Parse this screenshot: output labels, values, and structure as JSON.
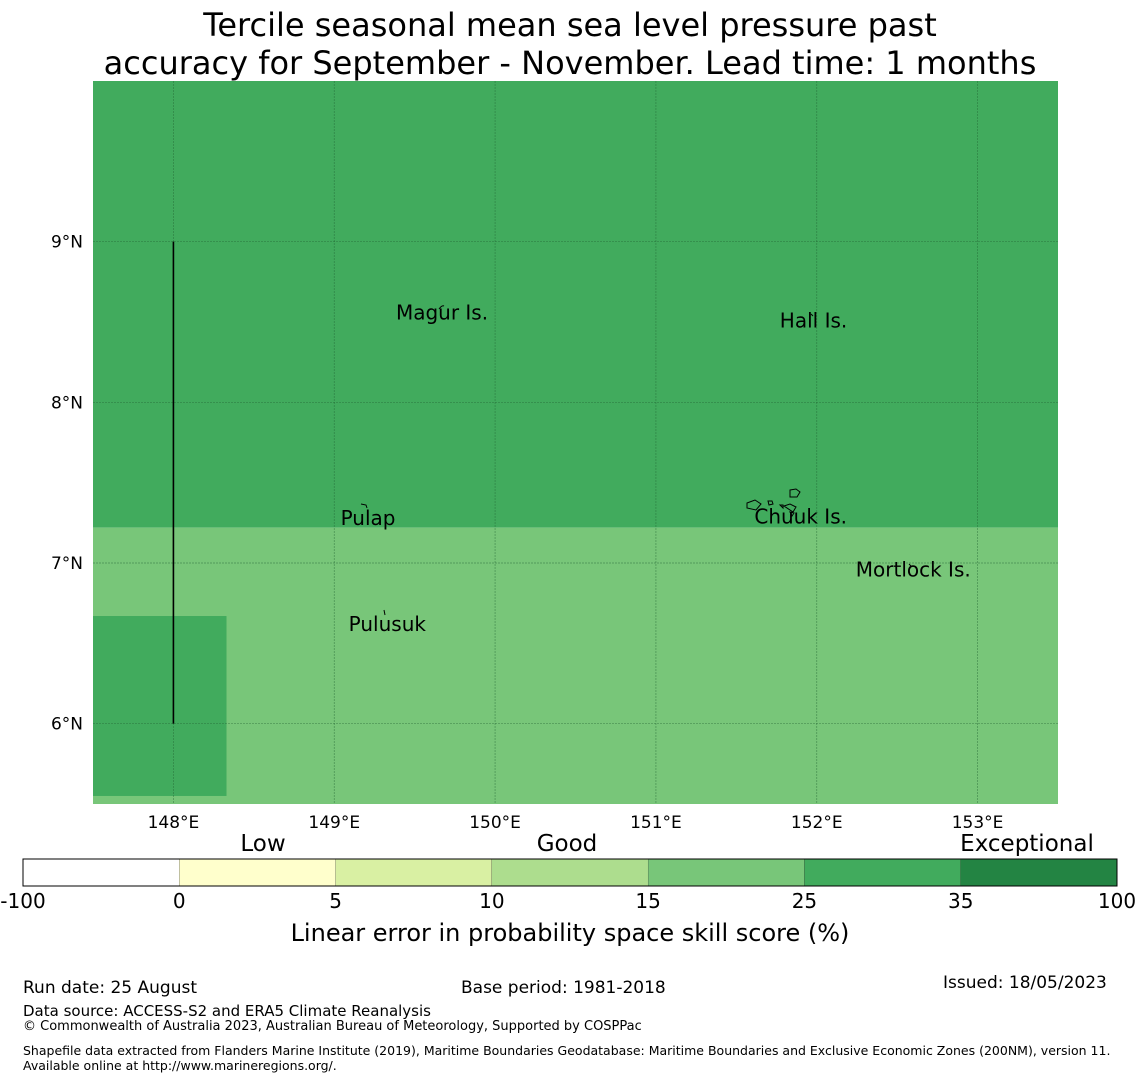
{
  "title_line1": "Tercile seasonal mean sea level pressure past",
  "title_line2": "accuracy for September - November. Lead time: 1 months",
  "map": {
    "lon_range": [
      147.5,
      153.5
    ],
    "lat_range": [
      5.5,
      10.0
    ],
    "lon_ticks": [
      148,
      149,
      150,
      151,
      152,
      153
    ],
    "lon_tick_labels": [
      "148°E",
      "149°E",
      "150°E",
      "151°E",
      "152°E",
      "153°E"
    ],
    "lat_ticks": [
      6,
      7,
      8,
      9
    ],
    "lat_tick_labels": [
      "6°N",
      "7°N",
      "8°N",
      "9°N"
    ],
    "colors": {
      "band_25_35": "#41ab5d",
      "band_15_25": "#78c679",
      "grid": "#1f5f2f",
      "line": "#000000"
    },
    "regions": [
      {
        "category": "25-35",
        "lon": [
          147.5,
          153.5
        ],
        "lat": [
          7.22,
          10.0
        ]
      },
      {
        "category": "15-25",
        "lon": [
          147.5,
          153.5
        ],
        "lat": [
          5.5,
          7.22
        ]
      },
      {
        "category": "25-35",
        "lon": [
          147.5,
          148.33
        ],
        "lat": [
          5.55,
          6.67
        ]
      }
    ],
    "boundary_line": {
      "lon": 148.0,
      "lat": [
        6.0,
        9.0
      ]
    },
    "places": [
      {
        "name": "Magur Is.",
        "lon": 149.67,
        "lat": 8.55
      },
      {
        "name": "Hall Is.",
        "lon": 151.98,
        "lat": 8.5
      },
      {
        "name": "Pulap",
        "lon": 149.21,
        "lat": 7.27
      },
      {
        "name": "Chuuk Is.",
        "lon": 151.9,
        "lat": 7.28
      },
      {
        "name": "Mortlock Is.",
        "lon": 152.6,
        "lat": 6.95
      },
      {
        "name": "Pulusuk",
        "lon": 149.33,
        "lat": 6.61
      }
    ]
  },
  "colorbar": {
    "categories": [
      "Low",
      "Good",
      "Exceptional"
    ],
    "tick_labels": [
      "-100",
      "0",
      "5",
      "10",
      "15",
      "25",
      "35",
      "100"
    ],
    "segment_colors": [
      "#ffffff",
      "#ffffcc",
      "#d9f0a3",
      "#addd8e",
      "#78c679",
      "#41ab5d",
      "#238443"
    ],
    "label": "Linear error in probability space skill score (%)"
  },
  "footer": {
    "run_date": "Run date: 25 August",
    "base_period": "Base period: 1981-2018",
    "issued": "Issued: 18/05/2023",
    "data_source": "Data source: ACCESS-S2 and ERA5 Climate Reanalysis",
    "copyright": "© Commonwealth of Australia 2023, Australian Bureau of Meteorology, Supported by COSPPac",
    "shapefile": "Shapefile data extracted from Flanders Marine Institute (2019), Maritime Boundaries Geodatabase: Maritime Boundaries and Exclusive Economic Zones (200NM), version 11. Available online at http://www.marineregions.org/."
  }
}
